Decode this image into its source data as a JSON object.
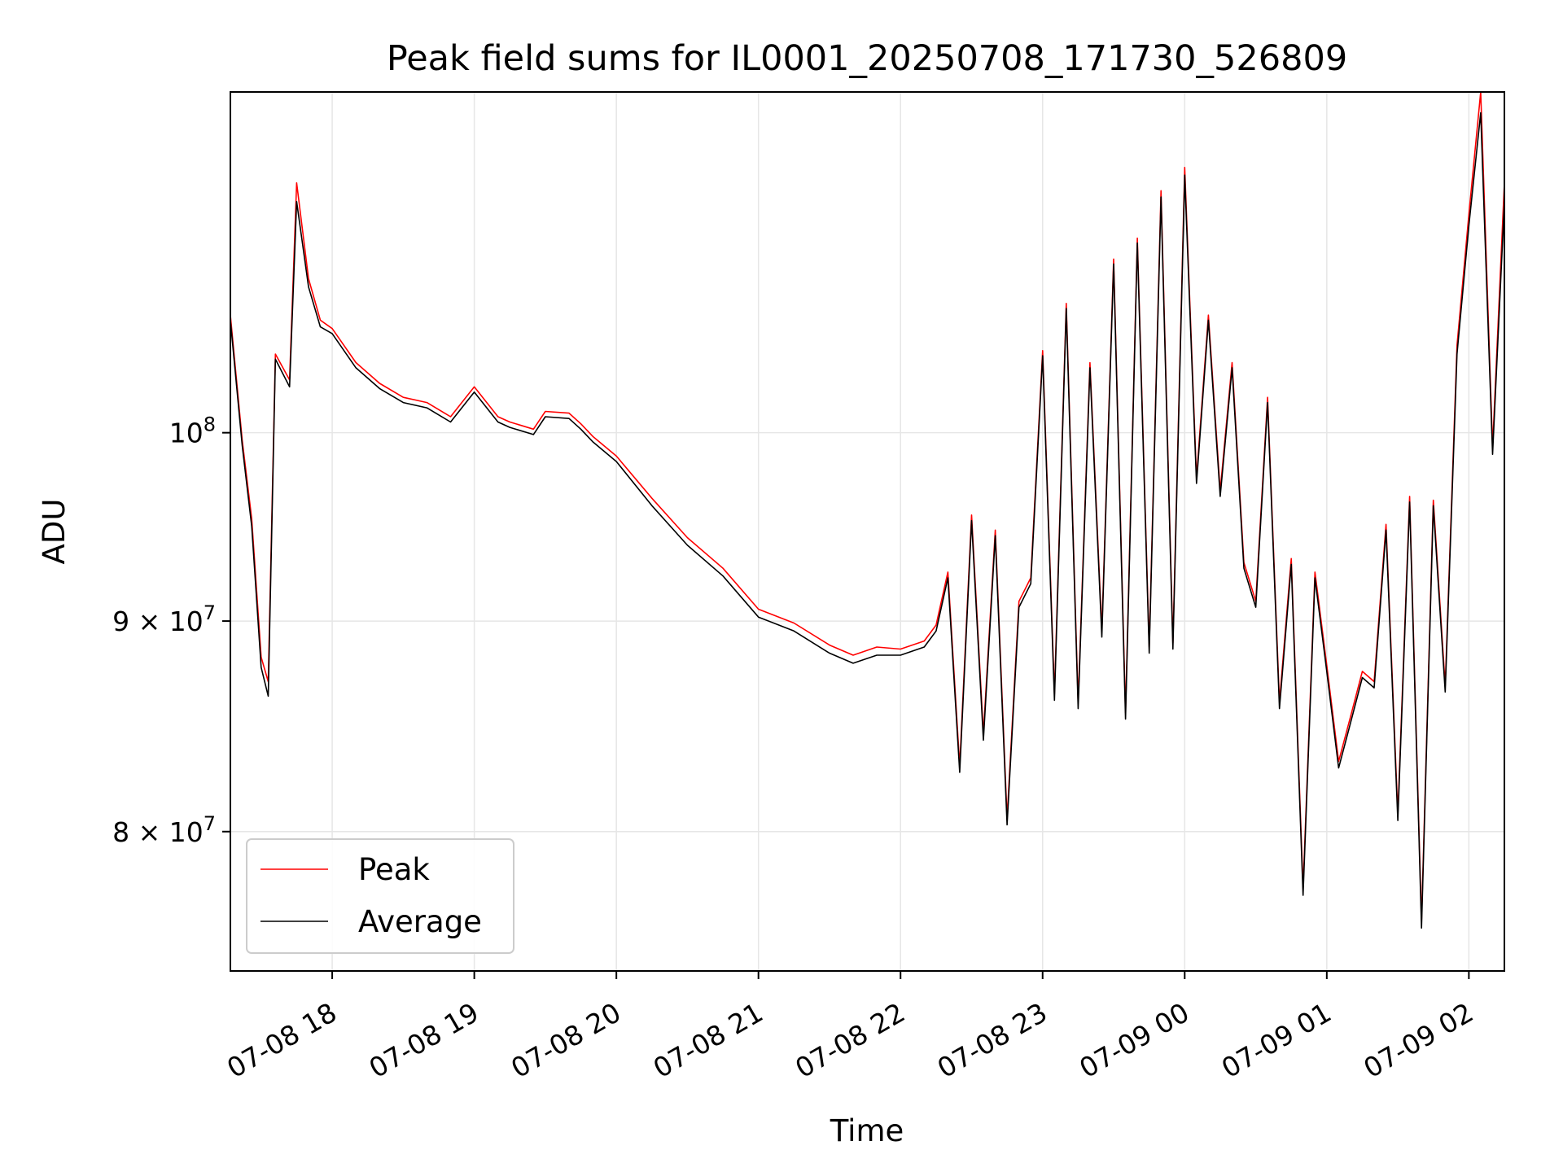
{
  "chart_data": {
    "type": "line",
    "title": "Peak field sums for IL0001_20250708_171730_526809",
    "xlabel": "Time",
    "ylabel": "ADU",
    "y_scale": "log",
    "grid": true,
    "legend_position": "lower-left",
    "xlim": [
      "07-08 17:17",
      "07-09 02:15"
    ],
    "ylim": [
      74000000,
      121000000
    ],
    "x_ticks": [
      "07-08 18",
      "07-08 19",
      "07-08 20",
      "07-08 21",
      "07-08 22",
      "07-08 23",
      "07-09 00",
      "07-09 01",
      "07-09 02"
    ],
    "y_ticks": [
      {
        "value": 80000000,
        "mantissa": "8",
        "base": "10",
        "exponent": "7"
      },
      {
        "value": 90000000,
        "mantissa": "9",
        "base": "10",
        "exponent": "7"
      },
      {
        "value": 100000000,
        "mantissa": "",
        "base": "10",
        "exponent": "8"
      }
    ],
    "x_times": [
      "07-08 17:17",
      "07-08 17:22",
      "07-08 17:26",
      "07-08 17:30",
      "07-08 17:33",
      "07-08 17:36",
      "07-08 17:42",
      "07-08 17:45",
      "07-08 17:50",
      "07-08 17:55",
      "07-08 18:00",
      "07-08 18:10",
      "07-08 18:20",
      "07-08 18:30",
      "07-08 18:40",
      "07-08 18:50",
      "07-08 19:00",
      "07-08 19:10",
      "07-08 19:15",
      "07-08 19:25",
      "07-08 19:30",
      "07-08 19:40",
      "07-08 19:45",
      "07-08 19:50",
      "07-08 20:00",
      "07-08 20:15",
      "07-08 20:30",
      "07-08 20:45",
      "07-08 21:00",
      "07-08 21:15",
      "07-08 21:30",
      "07-08 21:40",
      "07-08 21:50",
      "07-08 22:00",
      "07-08 22:10",
      "07-08 22:15",
      "07-08 22:20",
      "07-08 22:25",
      "07-08 22:30",
      "07-08 22:35",
      "07-08 22:40",
      "07-08 22:45",
      "07-08 22:50",
      "07-08 22:55",
      "07-08 23:00",
      "07-08 23:05",
      "07-08 23:10",
      "07-08 23:15",
      "07-08 23:20",
      "07-08 23:25",
      "07-08 23:30",
      "07-08 23:35",
      "07-08 23:40",
      "07-08 23:45",
      "07-08 23:50",
      "07-08 23:55",
      "07-09 00:00",
      "07-09 00:05",
      "07-09 00:10",
      "07-09 00:15",
      "07-09 00:20",
      "07-09 00:25",
      "07-09 00:30",
      "07-09 00:35",
      "07-09 00:40",
      "07-09 00:45",
      "07-09 00:50",
      "07-09 00:55",
      "07-09 01:00",
      "07-09 01:05",
      "07-09 01:10",
      "07-09 01:15",
      "07-09 01:20",
      "07-09 01:25",
      "07-09 01:30",
      "07-09 01:35",
      "07-09 01:40",
      "07-09 01:45",
      "07-09 01:50",
      "07-09 01:55",
      "07-09 02:00",
      "07-09 02:05",
      "07-09 02:10",
      "07-09 02:15"
    ],
    "series": [
      {
        "name": "Peak",
        "color": "#ff0000",
        "values": [
          106800000,
          99600000,
          95300000,
          88200000,
          87000000,
          104500000,
          103000000,
          115000000,
          109000000,
          106500000,
          106000000,
          104000000,
          102800000,
          102000000,
          101700000,
          100900000,
          102600000,
          100900000,
          100600000,
          100200000,
          101200000,
          101100000,
          100500000,
          99800000,
          98700000,
          96400000,
          94300000,
          92700000,
          90600000,
          89900000,
          88800000,
          88300000,
          88700000,
          88600000,
          89000000,
          89800000,
          92500000,
          83000000,
          95500000,
          84500000,
          94700000,
          80600000,
          91000000,
          92200000,
          104700000,
          86400000,
          107500000,
          86000000,
          104000000,
          89500000,
          110200000,
          85500000,
          111500000,
          88700000,
          114500000,
          88900000,
          116000000,
          97500000,
          106800000,
          96800000,
          104000000,
          93000000,
          91000000,
          102000000,
          86000000,
          93200000,
          77500000,
          92500000,
          87800000,
          83200000,
          85300000,
          87500000,
          87000000,
          95000000,
          80800000,
          96500000,
          76100000,
          96300000,
          86800000,
          105000000,
          113000000,
          121000000,
          99200000,
          115000000
        ]
      },
      {
        "name": "Average",
        "color": "#000000",
        "values": [
          106500000,
          99300000,
          94900000,
          87700000,
          86300000,
          104200000,
          102600000,
          113800000,
          108500000,
          106100000,
          105700000,
          103700000,
          102500000,
          101700000,
          101400000,
          100600000,
          102300000,
          100600000,
          100300000,
          99900000,
          100900000,
          100800000,
          100200000,
          99500000,
          98400000,
          96000000,
          93900000,
          92300000,
          90200000,
          89500000,
          88400000,
          87900000,
          88300000,
          88300000,
          88700000,
          89500000,
          92200000,
          82700000,
          95200000,
          84200000,
          94400000,
          80300000,
          90700000,
          91900000,
          104400000,
          86100000,
          107200000,
          85700000,
          103700000,
          89200000,
          109900000,
          85200000,
          111200000,
          88400000,
          114100000,
          88600000,
          115500000,
          97200000,
          106500000,
          96500000,
          103700000,
          92700000,
          90700000,
          101700000,
          85700000,
          92900000,
          77200000,
          92200000,
          87500000,
          82900000,
          85000000,
          87200000,
          86700000,
          94700000,
          80500000,
          96200000,
          75800000,
          96000000,
          86500000,
          104500000,
          112300000,
          119600000,
          98800000,
          113800000
        ]
      }
    ]
  }
}
